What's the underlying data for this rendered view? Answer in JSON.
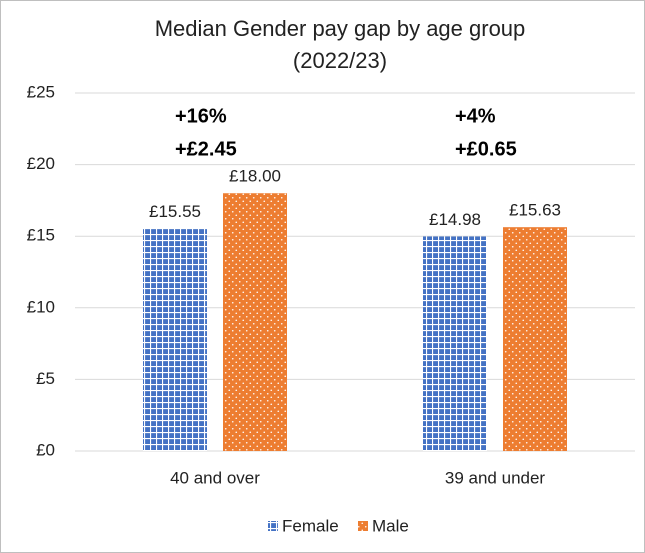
{
  "chart_data": {
    "type": "bar",
    "title": "Median Gender pay gap by age group",
    "subtitle": "(2022/23)",
    "categories": [
      "40 and over",
      "39 and under"
    ],
    "series": [
      {
        "name": "Female",
        "color": "#4472c4",
        "values": [
          15.55,
          14.98
        ],
        "value_labels": [
          "£15.55",
          "£14.98"
        ]
      },
      {
        "name": "Male",
        "color": "#ed7d31",
        "values": [
          18.0,
          15.63
        ],
        "value_labels": [
          "£18.00",
          "£15.63"
        ]
      }
    ],
    "annotations": [
      [
        "+16%",
        "+£2.45"
      ],
      [
        "+4%",
        "+£0.65"
      ]
    ],
    "ylim": [
      0,
      25
    ],
    "yticks": [
      {
        "value": 0,
        "label": "£0"
      },
      {
        "value": 5,
        "label": "£5"
      },
      {
        "value": 10,
        "label": "£10"
      },
      {
        "value": 15,
        "label": "£15"
      },
      {
        "value": 20,
        "label": "£20"
      },
      {
        "value": 25,
        "label": "£25"
      }
    ],
    "grid": true,
    "legend": "bottom"
  }
}
